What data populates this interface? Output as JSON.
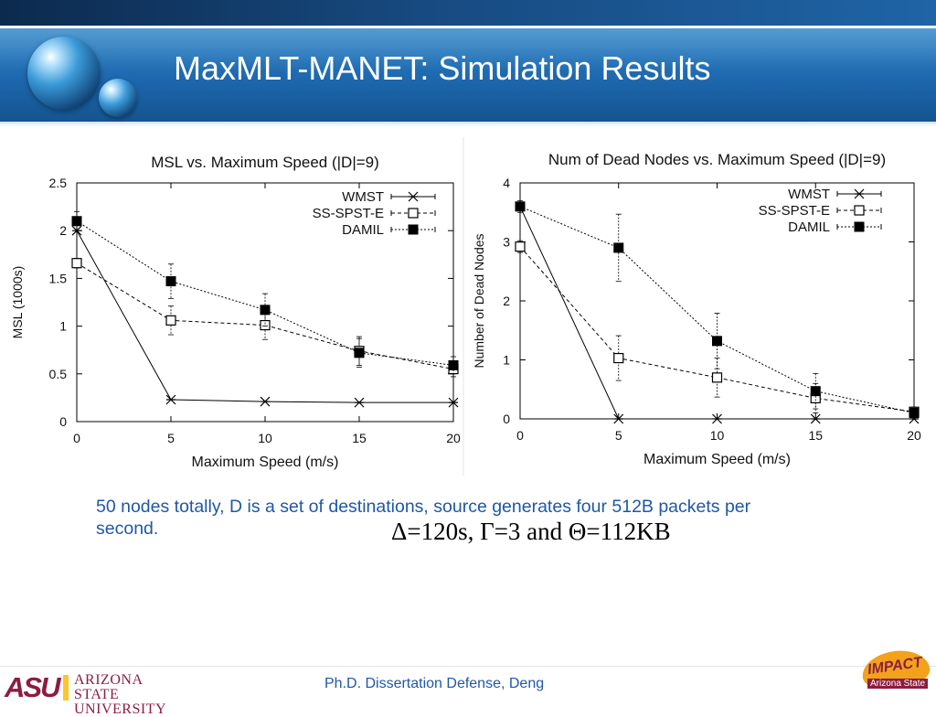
{
  "slide": {
    "title": "MaxMLT-MANET: Simulation Results",
    "description": "50 nodes totally, D is a set of destinations, source generates four 512B packets per second.",
    "formula": "Δ=120s, Γ=3 and Θ=112KB",
    "footer": "Ph.D. Dissertation Defense, Deng",
    "asu_logo_mark": "ASU",
    "asu_logo_text": [
      "ARIZONA STATE",
      "UNIVERSITY"
    ],
    "impact_logo_text": "IMPACT",
    "impact_logo_sub": "Arizona State"
  },
  "colors": {
    "banner": "#1d67ad",
    "title_text": "#ffffff",
    "body_text": "#1f57a8",
    "asu_maroon": "#8c1d40",
    "asu_gold": "#ffc627"
  },
  "chart_data": [
    {
      "type": "line",
      "title": "MSL vs. Maximum Speed (|D|=9)",
      "xlabel": "Maximum Speed (m/s)",
      "ylabel": "MSL (1000s)",
      "x": [
        0,
        5,
        10,
        15,
        20
      ],
      "xlim": [
        0,
        20
      ],
      "ylim": [
        0,
        2.5
      ],
      "xticks": [
        0,
        5,
        10,
        15,
        20
      ],
      "yticks": [
        0,
        0.5,
        1,
        1.5,
        2,
        2.5
      ],
      "ytick_labels": [
        "0",
        "0.5",
        "1",
        "1.5",
        "2",
        "2.5"
      ],
      "grid": false,
      "legend_position": "top-right",
      "series": [
        {
          "name": "WMST",
          "marker": "star",
          "style": "solid",
          "values": [
            2.0,
            0.23,
            0.21,
            0.2,
            0.2
          ],
          "errors": [
            0,
            0,
            0,
            0,
            0
          ]
        },
        {
          "name": "SS-SPST-E",
          "marker": "open-square",
          "style": "dashed",
          "values": [
            1.66,
            1.06,
            1.01,
            0.74,
            0.55
          ],
          "errors": [
            0.05,
            0.15,
            0.15,
            0.15,
            0.08
          ]
        },
        {
          "name": "DAMIL",
          "marker": "filled-square",
          "style": "dotted",
          "values": [
            2.1,
            1.47,
            1.17,
            0.72,
            0.59
          ],
          "errors": [
            0.1,
            0.18,
            0.17,
            0.15,
            0.09
          ]
        }
      ]
    },
    {
      "type": "line",
      "title": "Num of Dead Nodes vs. Maximum Speed (|D|=9)",
      "xlabel": "Maximum Speed (m/s)",
      "ylabel": "Number of Dead Nodes",
      "x": [
        0,
        5,
        10,
        15,
        20
      ],
      "xlim": [
        0,
        20
      ],
      "ylim": [
        0,
        4
      ],
      "xticks": [
        0,
        5,
        10,
        15,
        20
      ],
      "yticks": [
        0,
        1,
        2,
        3,
        4
      ],
      "ytick_labels": [
        "0",
        "1",
        "2",
        "3",
        "4"
      ],
      "grid": false,
      "legend_position": "top-right",
      "series": [
        {
          "name": "WMST",
          "marker": "star",
          "style": "solid",
          "values": [
            3.6,
            0,
            0,
            0,
            0
          ],
          "errors": [
            0,
            0,
            0,
            0,
            0
          ]
        },
        {
          "name": "SS-SPST-E",
          "marker": "open-square",
          "style": "dashed",
          "values": [
            2.92,
            1.03,
            0.7,
            0.35,
            0.12
          ],
          "errors": [
            0.1,
            0.38,
            0.33,
            0.25,
            0.08
          ]
        },
        {
          "name": "DAMIL",
          "marker": "filled-square",
          "style": "dotted",
          "values": [
            3.6,
            2.9,
            1.32,
            0.47,
            0.1
          ],
          "errors": [
            0.1,
            0.57,
            0.47,
            0.3,
            0.08
          ]
        }
      ]
    }
  ]
}
